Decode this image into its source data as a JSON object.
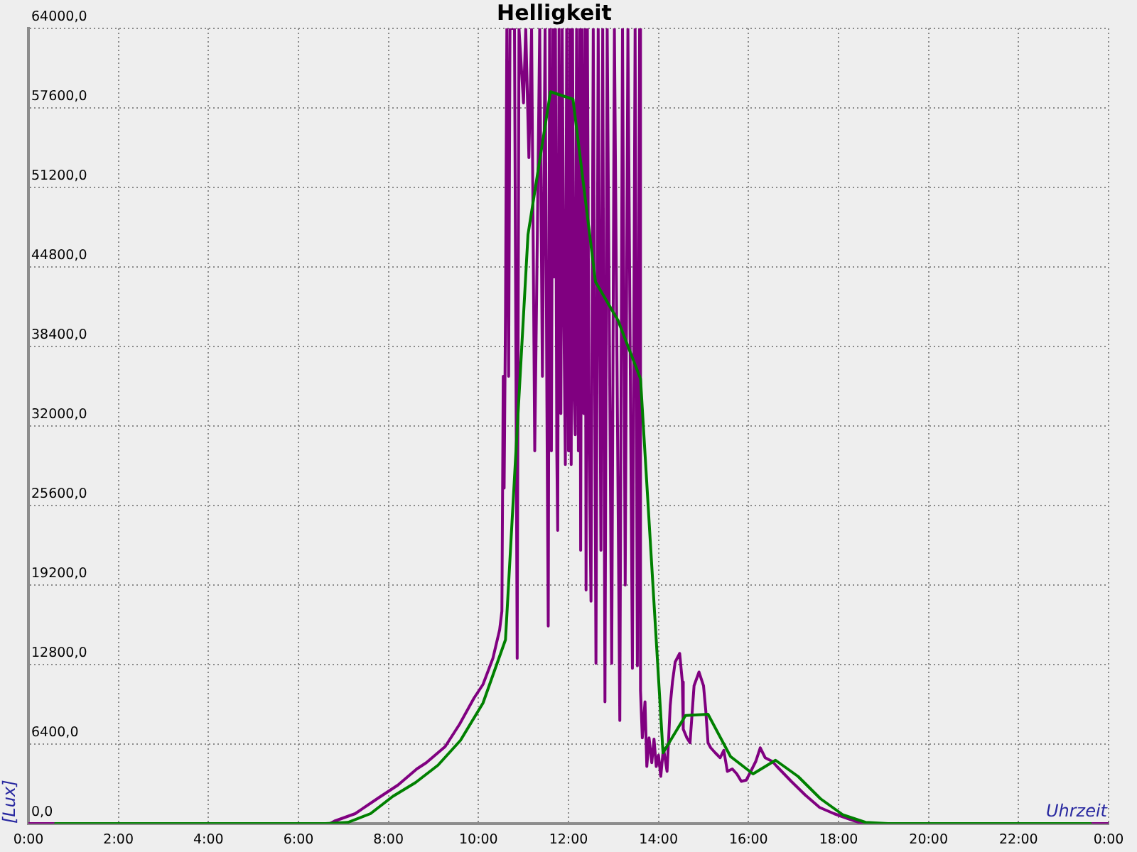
{
  "chart_data": {
    "type": "line",
    "title": "Helligkeit",
    "xlabel": "Uhrzeit",
    "ylabel": "[Lux]",
    "xlim": [
      0,
      24
    ],
    "xticks": [
      {
        "value": 0,
        "label": "0:00"
      },
      {
        "value": 2,
        "label": "2:00"
      },
      {
        "value": 4,
        "label": "4:00"
      },
      {
        "value": 6,
        "label": "6:00"
      },
      {
        "value": 8,
        "label": "8:00"
      },
      {
        "value": 10,
        "label": "10:00"
      },
      {
        "value": 12,
        "label": "12:00"
      },
      {
        "value": 14,
        "label": "14:00"
      },
      {
        "value": 16,
        "label": "16:00"
      },
      {
        "value": 18,
        "label": "18:00"
      },
      {
        "value": 20,
        "label": "20:00"
      },
      {
        "value": 22,
        "label": "22:00"
      },
      {
        "value": 24,
        "label": "0:00"
      }
    ],
    "ylim": [
      0,
      64000
    ],
    "yticks": [
      {
        "value": 0,
        "label": "0,0"
      },
      {
        "value": 6400,
        "label": "6400,0"
      },
      {
        "value": 12800,
        "label": "12800,0"
      },
      {
        "value": 19200,
        "label": "19200,0"
      },
      {
        "value": 25600,
        "label": "25600,0"
      },
      {
        "value": 32000,
        "label": "32000,0"
      },
      {
        "value": 38400,
        "label": "38400,0"
      },
      {
        "value": 44800,
        "label": "44800,0"
      },
      {
        "value": 51200,
        "label": "51200,0"
      },
      {
        "value": 57600,
        "label": "57600,0"
      },
      {
        "value": 64000,
        "label": "64000,0"
      }
    ],
    "grid": true,
    "series": [
      {
        "color": "#800080",
        "x": [
          0,
          6.7,
          6.8,
          7.26,
          7.79,
          8.21,
          8.63,
          8.84,
          9.26,
          9.58,
          9.9,
          10.1,
          10.32,
          10.47,
          10.52,
          10.55,
          10.57,
          10.6,
          10.63,
          10.67,
          10.7,
          10.8,
          10.86,
          10.9,
          11.0,
          11.05,
          11.12,
          11.18,
          11.25,
          11.3,
          11.36,
          11.42,
          11.48,
          11.52,
          11.55,
          11.58,
          11.62,
          11.65,
          11.68,
          11.71,
          11.74,
          11.76,
          11.79,
          11.83,
          11.86,
          11.9,
          11.93,
          11.96,
          12.0,
          12.03,
          12.06,
          12.09,
          12.12,
          12.15,
          12.18,
          12.22,
          12.25,
          12.27,
          12.3,
          12.34,
          12.37,
          12.39,
          12.42,
          12.46,
          12.5,
          12.55,
          12.61,
          12.66,
          12.72,
          12.76,
          12.81,
          12.86,
          12.96,
          13.02,
          13.14,
          13.2,
          13.26,
          13.32,
          13.42,
          13.48,
          13.53,
          13.58,
          13.6,
          13.64,
          13.7,
          13.74,
          13.79,
          13.85,
          13.9,
          13.95,
          14.0,
          14.05,
          14.11,
          14.19,
          14.26,
          14.31,
          14.37,
          14.47,
          14.53,
          14.55,
          14.63,
          14.7,
          14.79,
          14.9,
          15.0,
          15.05,
          15.1,
          15.16,
          15.26,
          15.37,
          15.45,
          15.53,
          15.64,
          15.74,
          15.84,
          15.95,
          16.05,
          16.16,
          16.26,
          16.37,
          16.53,
          16.63,
          16.95,
          17.26,
          17.58,
          17.9,
          18.21,
          18.53,
          24
        ],
        "values": [
          0,
          0,
          200,
          800,
          2100,
          3100,
          4400,
          4900,
          6200,
          8000,
          10100,
          11200,
          13300,
          15600,
          17100,
          36000,
          27000,
          41000,
          64000,
          36000,
          64000,
          64000,
          13300,
          64000,
          58000,
          64000,
          53600,
          64000,
          30000,
          45000,
          64000,
          36000,
          64000,
          34000,
          15900,
          64000,
          30000,
          64000,
          44000,
          64000,
          30000,
          23600,
          64000,
          33000,
          64000,
          40000,
          28900,
          64000,
          30000,
          64000,
          28900,
          64000,
          35000,
          31300,
          64000,
          30000,
          64000,
          22000,
          64000,
          33000,
          64000,
          18800,
          64000,
          30000,
          17900,
          64000,
          12900,
          64000,
          22000,
          64000,
          9800,
          64000,
          12900,
          64000,
          8300,
          64000,
          19200,
          64000,
          12500,
          64000,
          12700,
          64000,
          10700,
          6900,
          9800,
          4600,
          6900,
          4900,
          6800,
          4600,
          5500,
          3800,
          6100,
          4200,
          9500,
          11400,
          13000,
          13700,
          11400,
          7600,
          6900,
          6500,
          11100,
          12200,
          11100,
          9100,
          6500,
          6100,
          5700,
          5300,
          5900,
          4200,
          4400,
          4000,
          3400,
          3500,
          4200,
          5000,
          6100,
          5300,
          5000,
          4600,
          3400,
          2300,
          1300,
          800,
          400,
          0,
          0
        ]
      },
      {
        "color": "#008000",
        "x": [
          0.6,
          1.1,
          1.6,
          2.1,
          2.6,
          3.1,
          3.6,
          4.1,
          4.6,
          5.1,
          5.6,
          6.1,
          6.6,
          7.1,
          7.6,
          8.1,
          8.6,
          9.1,
          9.6,
          10.1,
          10.6,
          11.1,
          11.6,
          12.1,
          12.6,
          13.1,
          13.6,
          14.1,
          14.6,
          15.1,
          15.6,
          16.1,
          16.6,
          17.1,
          17.6,
          18.1,
          18.6,
          19.1,
          19.6,
          20.1,
          20.6,
          21.1,
          21.6,
          22.1,
          22.6,
          23.1,
          23.6
        ],
        "values": [
          0,
          0,
          0,
          0,
          0,
          0,
          0,
          0,
          0,
          0,
          0,
          0,
          0,
          100,
          800,
          2200,
          3300,
          4700,
          6700,
          9700,
          14800,
          47400,
          58900,
          58300,
          43600,
          40500,
          35800,
          5700,
          8700,
          8800,
          5400,
          4000,
          5100,
          3800,
          2000,
          700,
          100,
          0,
          0,
          0,
          0,
          0,
          0,
          0,
          0,
          0,
          0
        ]
      }
    ]
  }
}
